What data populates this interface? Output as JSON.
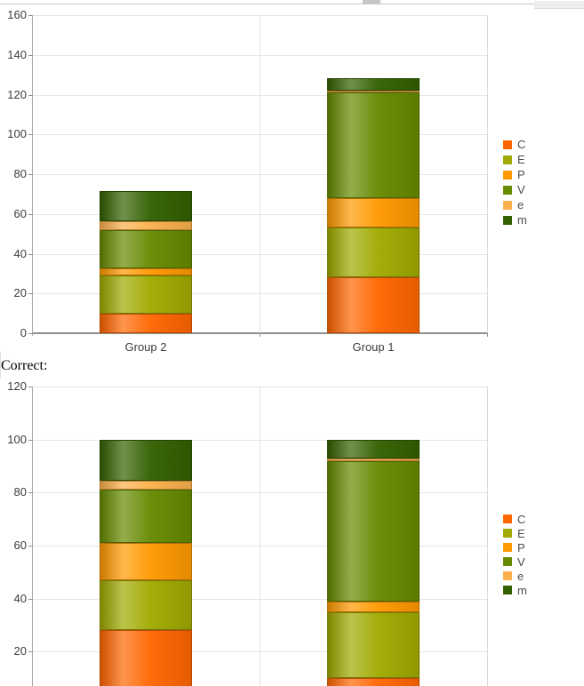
{
  "page": {
    "correct_label": "Correct:"
  },
  "chart_data": [
    {
      "type": "bar",
      "stacked": true,
      "title": "",
      "categories": [
        "Group 2",
        "Group 1"
      ],
      "series": [
        {
          "name": "C",
          "color": "#ff6600",
          "values": [
            10,
            28
          ]
        },
        {
          "name": "E",
          "color": "#a0aa00",
          "values": [
            19,
            25
          ]
        },
        {
          "name": "P",
          "color": "#ff9900",
          "values": [
            3.5,
            15
          ]
        },
        {
          "name": "V",
          "color": "#668a00",
          "values": [
            19.5,
            53
          ]
        },
        {
          "name": "e",
          "color": "#fbb04c",
          "values": [
            4.5,
            1
          ]
        },
        {
          "name": "m",
          "color": "#336000",
          "values": [
            15,
            6.5
          ]
        }
      ],
      "ylim": [
        0,
        160
      ],
      "ytick_step": 20,
      "grid": true,
      "legend_position": "right"
    },
    {
      "type": "bar",
      "stacked": true,
      "title": "",
      "categories": [
        "",
        ""
      ],
      "series": [
        {
          "name": "C",
          "color": "#ff6600",
          "values": [
            28,
            10
          ]
        },
        {
          "name": "E",
          "color": "#a0aa00",
          "values": [
            19,
            25
          ]
        },
        {
          "name": "P",
          "color": "#ff9900",
          "values": [
            14,
            4
          ]
        },
        {
          "name": "V",
          "color": "#668a00",
          "values": [
            20,
            53
          ]
        },
        {
          "name": "e",
          "color": "#fbb04c",
          "values": [
            3.5,
            1
          ]
        },
        {
          "name": "m",
          "color": "#336000",
          "values": [
            15.5,
            7
          ]
        }
      ],
      "ylim": [
        0,
        120
      ],
      "ytick_step": 20,
      "grid": true,
      "legend_position": "right"
    }
  ]
}
